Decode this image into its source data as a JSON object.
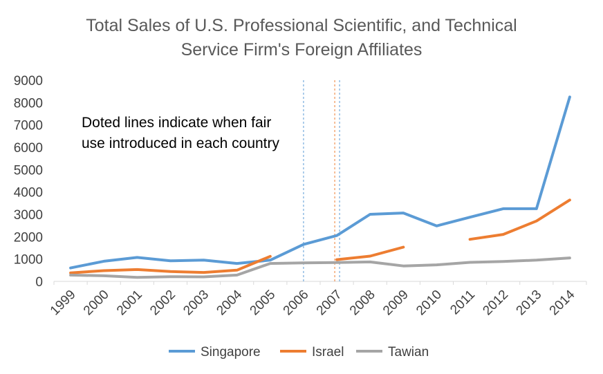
{
  "chart_data": {
    "type": "line",
    "title": "Total Sales of U.S. Professional Scientific, and Technical Service Firm's Foreign Affiliates",
    "title_lines": [
      "Total Sales of U.S. Professional Scientific, and Technical",
      "Service Firm's Foreign Affiliates"
    ],
    "xlabel": "",
    "ylabel": "",
    "categories": [
      "1999",
      "2000",
      "2001",
      "2002",
      "2003",
      "2004",
      "2005",
      "2006",
      "2007",
      "2008",
      "2009",
      "2010",
      "2011",
      "2012",
      "2013",
      "2014"
    ],
    "ylim": [
      0,
      9000
    ],
    "yticks": [
      0,
      1000,
      2000,
      3000,
      4000,
      5000,
      6000,
      7000,
      8000,
      9000
    ],
    "grid": false,
    "legend_position": "bottom",
    "series": [
      {
        "name": "Singapore",
        "color": "#5B9BD5",
        "values": [
          600,
          900,
          1070,
          920,
          950,
          800,
          950,
          1650,
          2050,
          3000,
          3060,
          2480,
          2870,
          3250,
          3250,
          8250
        ]
      },
      {
        "name": "Israel",
        "color": "#ED7D31",
        "values": [
          380,
          480,
          530,
          440,
          400,
          500,
          1120,
          null,
          970,
          1130,
          1530,
          null,
          1880,
          2100,
          2700,
          3640
        ]
      },
      {
        "name": "Tawian",
        "color": "#A5A5A5",
        "values": [
          280,
          250,
          180,
          210,
          200,
          280,
          800,
          830,
          840,
          870,
          690,
          740,
          850,
          890,
          950,
          1050
        ]
      }
    ],
    "fair_use_markers": [
      {
        "series": "Singapore",
        "x": 2006,
        "color": "#5B9BD5"
      },
      {
        "series": "Israel",
        "x": 2007,
        "color": "#ED7D31"
      },
      {
        "series": "Tawian",
        "x": 2007,
        "color": "#5B9BD5"
      }
    ],
    "annotation_lines": [
      "Doted lines indicate when fair",
      "use introduced in each country"
    ]
  }
}
